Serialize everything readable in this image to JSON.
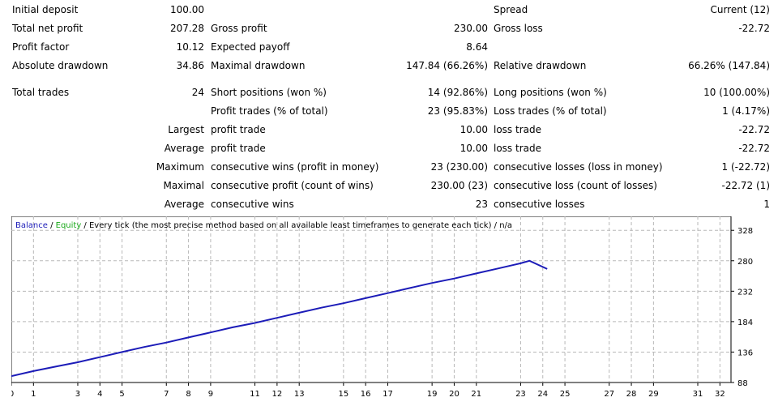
{
  "report": {
    "initial_deposit": {
      "label": "Initial deposit",
      "value": "100.00"
    },
    "spread": {
      "label": "Spread",
      "value": "Current (12)"
    },
    "total_net_profit": {
      "label": "Total net profit",
      "value": "207.28"
    },
    "gross_profit": {
      "label": "Gross profit",
      "value": "230.00"
    },
    "gross_loss": {
      "label": "Gross loss",
      "value": "-22.72"
    },
    "profit_factor": {
      "label": "Profit factor",
      "value": "10.12"
    },
    "expected_payoff": {
      "label": "Expected payoff",
      "value": "8.64"
    },
    "absolute_drawdown": {
      "label": "Absolute drawdown",
      "value": "34.86"
    },
    "maximal_drawdown": {
      "label": "Maximal drawdown",
      "value": "147.84 (66.26%)"
    },
    "relative_drawdown": {
      "label": "Relative drawdown",
      "value": "66.26% (147.84)"
    },
    "total_trades": {
      "label": "Total trades",
      "value": "24"
    },
    "short_positions": {
      "label": "Short positions (won %)",
      "value": "14 (92.86%)"
    },
    "long_positions": {
      "label": "Long positions (won %)",
      "value": "10 (100.00%)"
    },
    "profit_trades": {
      "label": "Profit trades (% of total)",
      "value": "23 (95.83%)"
    },
    "loss_trades": {
      "label": "Loss trades (% of total)",
      "value": "1 (4.17%)"
    },
    "largest": {
      "prefix": "Largest",
      "profit_label": "profit trade",
      "profit_value": "10.00",
      "loss_label": "loss trade",
      "loss_value": "-22.72"
    },
    "average": {
      "prefix": "Average",
      "profit_label": "profit trade",
      "profit_value": "10.00",
      "loss_label": "loss trade",
      "loss_value": "-22.72"
    },
    "maximum": {
      "prefix": "Maximum",
      "wins_label": "consecutive wins (profit in money)",
      "wins_value": "23 (230.00)",
      "losses_label": "consecutive losses (loss in money)",
      "losses_value": "1 (-22.72)"
    },
    "maximal": {
      "prefix": "Maximal",
      "profit_label": "consecutive profit (count of wins)",
      "profit_value": "230.00 (23)",
      "loss_label": "consecutive loss (count of losses)",
      "loss_value": "-22.72 (1)"
    },
    "average_consec": {
      "prefix": "Average",
      "wins_label": "consecutive wins",
      "wins_value": "23",
      "losses_label": "consecutive losses",
      "losses_value": "1"
    }
  },
  "chart_legend": {
    "balance": "Balance",
    "sep1": " / ",
    "equity": "Equity",
    "rest": " / Every tick (the most precise method based on all available least timeframes to generate each tick) / n/a"
  },
  "colors": {
    "balance": "#1c1cb8",
    "equity": "#18a818",
    "grid": "#b8b8b8"
  },
  "chart_data": {
    "type": "line",
    "series": [
      {
        "name": "Balance",
        "x": [
          0,
          1,
          2,
          3,
          4,
          5,
          6,
          7,
          8,
          9,
          10,
          11,
          12,
          13,
          14,
          15,
          16,
          17,
          18,
          19,
          20,
          21,
          22,
          23,
          23.4,
          24.2
        ],
        "y": [
          98,
          106,
          113,
          120,
          128,
          136,
          144,
          151,
          159,
          167,
          175,
          182,
          190,
          198,
          206,
          213,
          221,
          229,
          237,
          245,
          252,
          260,
          268,
          276,
          280,
          267
        ]
      }
    ],
    "x_ticks": [
      0,
      1,
      3,
      4,
      5,
      7,
      8,
      9,
      11,
      12,
      13,
      15,
      16,
      17,
      19,
      20,
      21,
      23,
      24,
      25,
      27,
      28,
      29,
      31,
      32
    ],
    "y_ticks": [
      88,
      136,
      184,
      232,
      280,
      328
    ],
    "xlim": [
      0,
      32.5
    ],
    "ylim": [
      88,
      350
    ],
    "grid": true
  }
}
